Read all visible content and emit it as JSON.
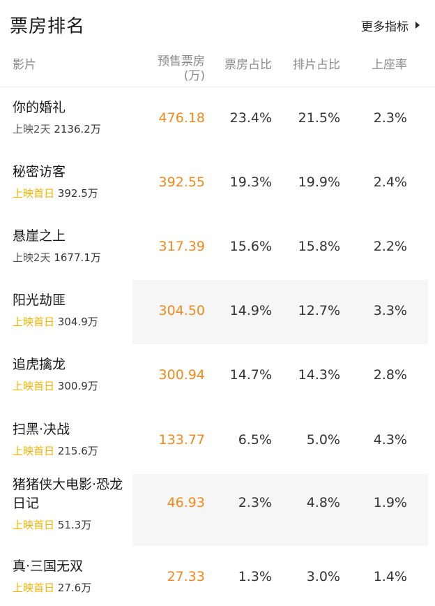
{
  "header": {
    "title": "票房排名",
    "more_label": "更多指标"
  },
  "columns": {
    "film": "影片",
    "presale": "预售票房",
    "presale_unit": "(万)",
    "box_ratio": "票房占比",
    "screen_ratio": "排片占比",
    "seat_rate": "上座率"
  },
  "rows": [
    {
      "name": "你的婚礼",
      "tag": "上映2天",
      "tag_first": false,
      "total": "2136.2万",
      "presale": "476.18",
      "box_ratio": "23.4%",
      "screen_ratio": "21.5%",
      "seat_rate": "2.3%"
    },
    {
      "name": "秘密访客",
      "tag": "上映首日",
      "tag_first": true,
      "total": "392.5万",
      "presale": "392.55",
      "box_ratio": "19.3%",
      "screen_ratio": "19.9%",
      "seat_rate": "2.4%"
    },
    {
      "name": "悬崖之上",
      "tag": "上映2天",
      "tag_first": false,
      "total": "1677.1万",
      "presale": "317.39",
      "box_ratio": "15.6%",
      "screen_ratio": "15.8%",
      "seat_rate": "2.2%"
    },
    {
      "name": "阳光劫匪",
      "tag": "上映首日",
      "tag_first": true,
      "total": "304.9万",
      "presale": "304.50",
      "box_ratio": "14.9%",
      "screen_ratio": "12.7%",
      "seat_rate": "3.3%"
    },
    {
      "name": "追虎擒龙",
      "tag": "上映首日",
      "tag_first": true,
      "total": "300.9万",
      "presale": "300.94",
      "box_ratio": "14.7%",
      "screen_ratio": "14.3%",
      "seat_rate": "2.8%"
    },
    {
      "name": "扫黑·决战",
      "tag": "上映首日",
      "tag_first": true,
      "total": "215.6万",
      "presale": "133.77",
      "box_ratio": "6.5%",
      "screen_ratio": "5.0%",
      "seat_rate": "4.3%"
    },
    {
      "name": "猪猪侠大电影·恐龙日记",
      "tag": "上映首日",
      "tag_first": true,
      "total": "51.3万",
      "presale": "46.93",
      "box_ratio": "2.3%",
      "screen_ratio": "4.8%",
      "seat_rate": "1.9%"
    },
    {
      "name": "真·三国无双",
      "tag": "上映首日",
      "tag_first": true,
      "total": "27.6万",
      "presale": "27.33",
      "box_ratio": "1.3%",
      "screen_ratio": "3.0%",
      "seat_rate": "1.4%"
    }
  ]
}
